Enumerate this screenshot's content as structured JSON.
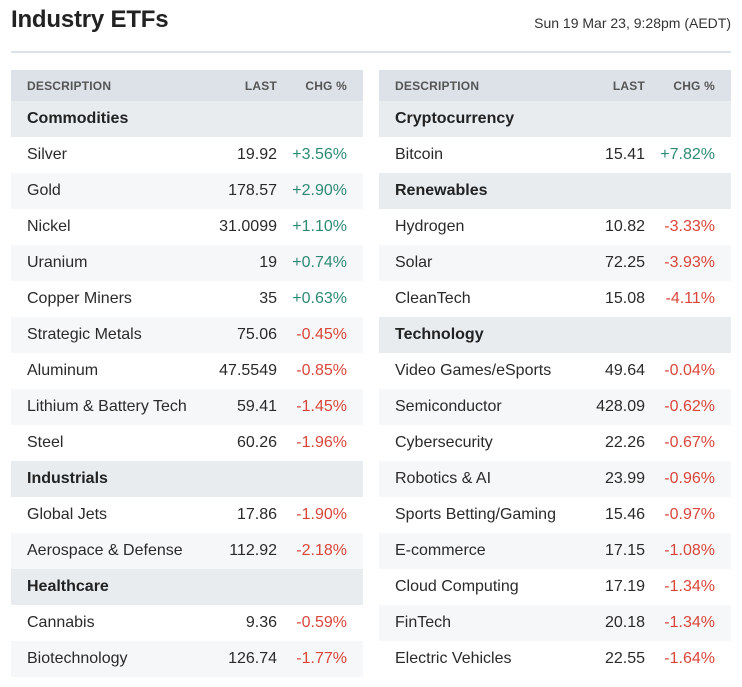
{
  "page": {
    "title": "Industry ETFs",
    "timestamp": "Sun 19 Mar 23, 9:28pm (AEDT)"
  },
  "columns": {
    "description": "DESCRIPTION",
    "last": "LAST",
    "change": "CHG %"
  },
  "colors": {
    "positive": "#2e8a76",
    "negative": "#d9463a",
    "header_bg": "#dde2e8"
  },
  "left_table": [
    {
      "type": "group",
      "name": "Commodities"
    },
    {
      "type": "item",
      "name": "Silver",
      "last": "19.92",
      "change": "+3.56%"
    },
    {
      "type": "item",
      "name": "Gold",
      "last": "178.57",
      "change": "+2.90%"
    },
    {
      "type": "item",
      "name": "Nickel",
      "last": "31.0099",
      "change": "+1.10%"
    },
    {
      "type": "item",
      "name": "Uranium",
      "last": "19",
      "change": "+0.74%"
    },
    {
      "type": "item",
      "name": "Copper Miners",
      "last": "35",
      "change": "+0.63%"
    },
    {
      "type": "item",
      "name": "Strategic Metals",
      "last": "75.06",
      "change": "-0.45%"
    },
    {
      "type": "item",
      "name": "Aluminum",
      "last": "47.5549",
      "change": "-0.85%"
    },
    {
      "type": "item",
      "name": "Lithium & Battery Tech",
      "last": "59.41",
      "change": "-1.45%"
    },
    {
      "type": "item",
      "name": "Steel",
      "last": "60.26",
      "change": "-1.96%"
    },
    {
      "type": "group",
      "name": "Industrials"
    },
    {
      "type": "item",
      "name": "Global Jets",
      "last": "17.86",
      "change": "-1.90%"
    },
    {
      "type": "item",
      "name": "Aerospace & Defense",
      "last": "112.92",
      "change": "-2.18%"
    },
    {
      "type": "group",
      "name": "Healthcare"
    },
    {
      "type": "item",
      "name": "Cannabis",
      "last": "9.36",
      "change": "-0.59%"
    },
    {
      "type": "item",
      "name": "Biotechnology",
      "last": "126.74",
      "change": "-1.77%"
    }
  ],
  "right_table": [
    {
      "type": "group",
      "name": "Cryptocurrency"
    },
    {
      "type": "item",
      "name": "Bitcoin",
      "last": "15.41",
      "change": "+7.82%"
    },
    {
      "type": "group",
      "name": "Renewables"
    },
    {
      "type": "item",
      "name": "Hydrogen",
      "last": "10.82",
      "change": "-3.33%"
    },
    {
      "type": "item",
      "name": "Solar",
      "last": "72.25",
      "change": "-3.93%"
    },
    {
      "type": "item",
      "name": "CleanTech",
      "last": "15.08",
      "change": "-4.11%"
    },
    {
      "type": "group",
      "name": "Technology"
    },
    {
      "type": "item",
      "name": "Video Games/eSports",
      "last": "49.64",
      "change": "-0.04%"
    },
    {
      "type": "item",
      "name": "Semiconductor",
      "last": "428.09",
      "change": "-0.62%"
    },
    {
      "type": "item",
      "name": "Cybersecurity",
      "last": "22.26",
      "change": "-0.67%"
    },
    {
      "type": "item",
      "name": "Robotics & AI",
      "last": "23.99",
      "change": "-0.96%"
    },
    {
      "type": "item",
      "name": "Sports Betting/Gaming",
      "last": "15.46",
      "change": "-0.97%"
    },
    {
      "type": "item",
      "name": "E-commerce",
      "last": "17.15",
      "change": "-1.08%"
    },
    {
      "type": "item",
      "name": "Cloud Computing",
      "last": "17.19",
      "change": "-1.34%"
    },
    {
      "type": "item",
      "name": "FinTech",
      "last": "20.18",
      "change": "-1.34%"
    },
    {
      "type": "item",
      "name": "Electric Vehicles",
      "last": "22.55",
      "change": "-1.64%"
    }
  ]
}
